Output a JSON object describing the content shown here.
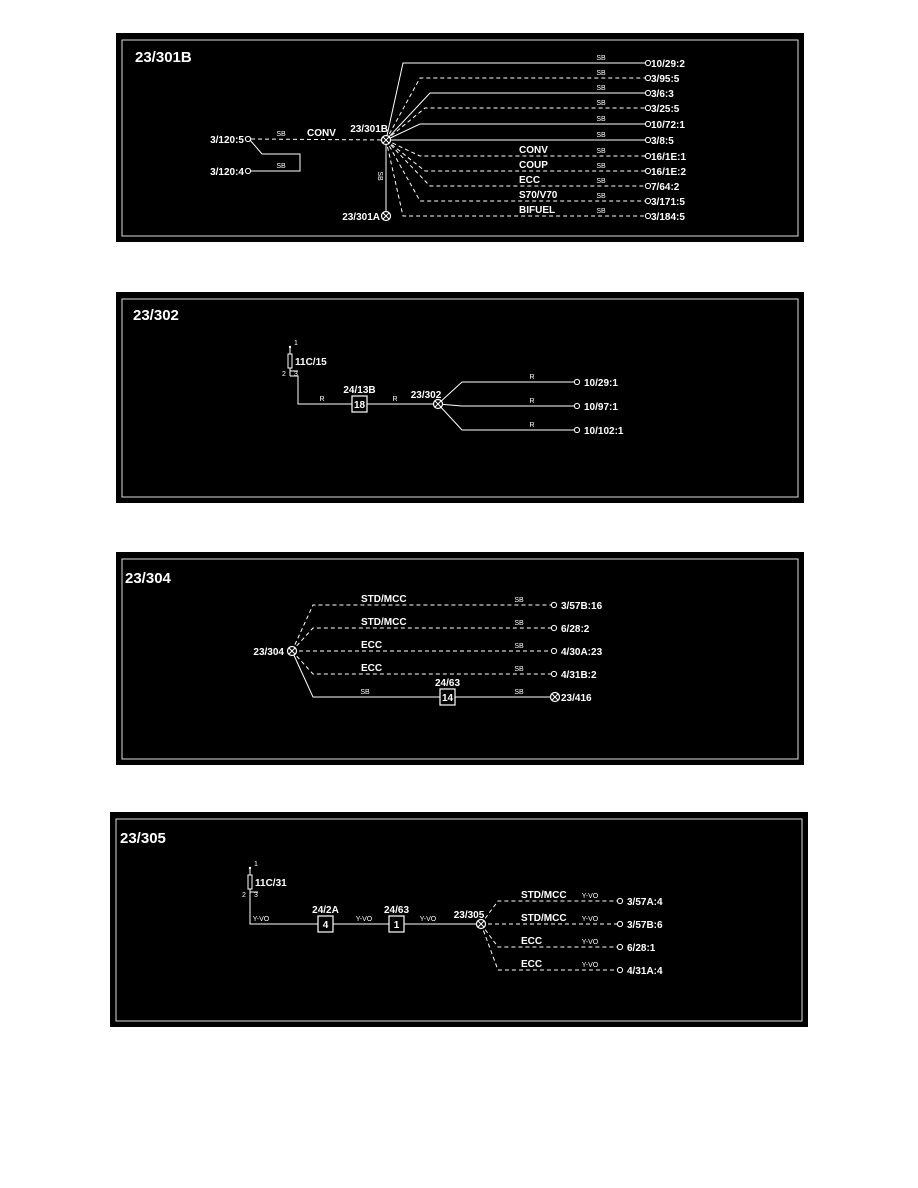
{
  "colors": {
    "background": "#000000",
    "lines": "#ffffff",
    "page": "#ffffff"
  },
  "panels": [
    {
      "title": "23/301B",
      "hub": "23/301B",
      "hub_icon": "splice-icon",
      "branches": [
        {
          "to": "10/29:2",
          "wire": "SB",
          "variant": "",
          "dashed": false
        },
        {
          "to": "3/95:5",
          "wire": "SB",
          "variant": "",
          "dashed": true
        },
        {
          "to": "3/6:3",
          "wire": "SB",
          "variant": "",
          "dashed": false
        },
        {
          "to": "3/25:5",
          "wire": "SB",
          "variant": "",
          "dashed": true
        },
        {
          "to": "10/72:1",
          "wire": "SB",
          "variant": "",
          "dashed": false
        },
        {
          "to": "3/8:5",
          "wire": "SB",
          "variant": "",
          "dashed": false
        },
        {
          "to": "16/1E:1",
          "wire": "SB",
          "variant": "CONV",
          "dashed": true
        },
        {
          "to": "16/1E:2",
          "wire": "SB",
          "variant": "COUP",
          "dashed": true
        },
        {
          "to": "7/64:2",
          "wire": "SB",
          "variant": "ECC",
          "dashed": true
        },
        {
          "to": "3/171:5",
          "wire": "SB",
          "variant": "S70/V70",
          "dashed": true
        },
        {
          "to": "3/184:5",
          "wire": "SB",
          "variant": "BIFUEL",
          "dashed": true
        }
      ],
      "left": {
        "top_connector": "3/120:5",
        "top_wire": "SB",
        "top_variant": "CONV",
        "bottom_connector": "3/120:4",
        "bottom_wire": "SB"
      },
      "down": {
        "wire": "SB",
        "to": "23/301A"
      }
    },
    {
      "title": "23/302",
      "fuse": {
        "label": "11C/15",
        "pin_top": "1",
        "pin_left": "2",
        "pin_right": "3"
      },
      "feed": [
        {
          "wire": "R"
        },
        {
          "box_label": "24/13B",
          "box_value": "18",
          "wire": "R"
        }
      ],
      "hub": "23/302",
      "branches": [
        {
          "to": "10/29:1",
          "wire": "R",
          "dashed": false
        },
        {
          "to": "10/97:1",
          "wire": "R",
          "dashed": false
        },
        {
          "to": "10/102:1",
          "wire": "R",
          "dashed": false
        }
      ]
    },
    {
      "title": "23/304",
      "hub": "23/304",
      "branches": [
        {
          "to": "3/57B:16",
          "wire": "SB",
          "variant": "STD/MCC",
          "dashed": true
        },
        {
          "to": "6/28:2",
          "wire": "SB",
          "variant": "STD/MCC",
          "dashed": true
        },
        {
          "to": "4/30A:23",
          "wire": "SB",
          "variant": "ECC",
          "dashed": true
        },
        {
          "to": "4/31B:2",
          "wire": "SB",
          "variant": "ECC",
          "dashed": true
        },
        {
          "to": "23/416",
          "wire": "SB",
          "wire_before": "SB",
          "variant": "",
          "dashed": false,
          "box_label": "24/63",
          "box_value": "14"
        }
      ]
    },
    {
      "title": "23/305",
      "fuse": {
        "label": "11C/31",
        "pin_top": "1",
        "pin_left": "2",
        "pin_right": "3"
      },
      "feed": [
        {
          "wire": "Y-VO"
        },
        {
          "box_label": "24/2A",
          "box_value": "4",
          "wire": "Y-VO"
        },
        {
          "box_label": "24/63",
          "box_value": "1",
          "wire": "Y-VO"
        }
      ],
      "hub": "23/305",
      "branches": [
        {
          "to": "3/57A:4",
          "wire": "Y-VO",
          "variant": "STD/MCC",
          "dashed": true
        },
        {
          "to": "3/57B:6",
          "wire": "Y-VO",
          "variant": "STD/MCC",
          "dashed": true
        },
        {
          "to": "6/28:1",
          "wire": "Y-VO",
          "variant": "ECC",
          "dashed": true
        },
        {
          "to": "4/31A:4",
          "wire": "Y-VO",
          "variant": "ECC",
          "dashed": true
        }
      ]
    }
  ]
}
